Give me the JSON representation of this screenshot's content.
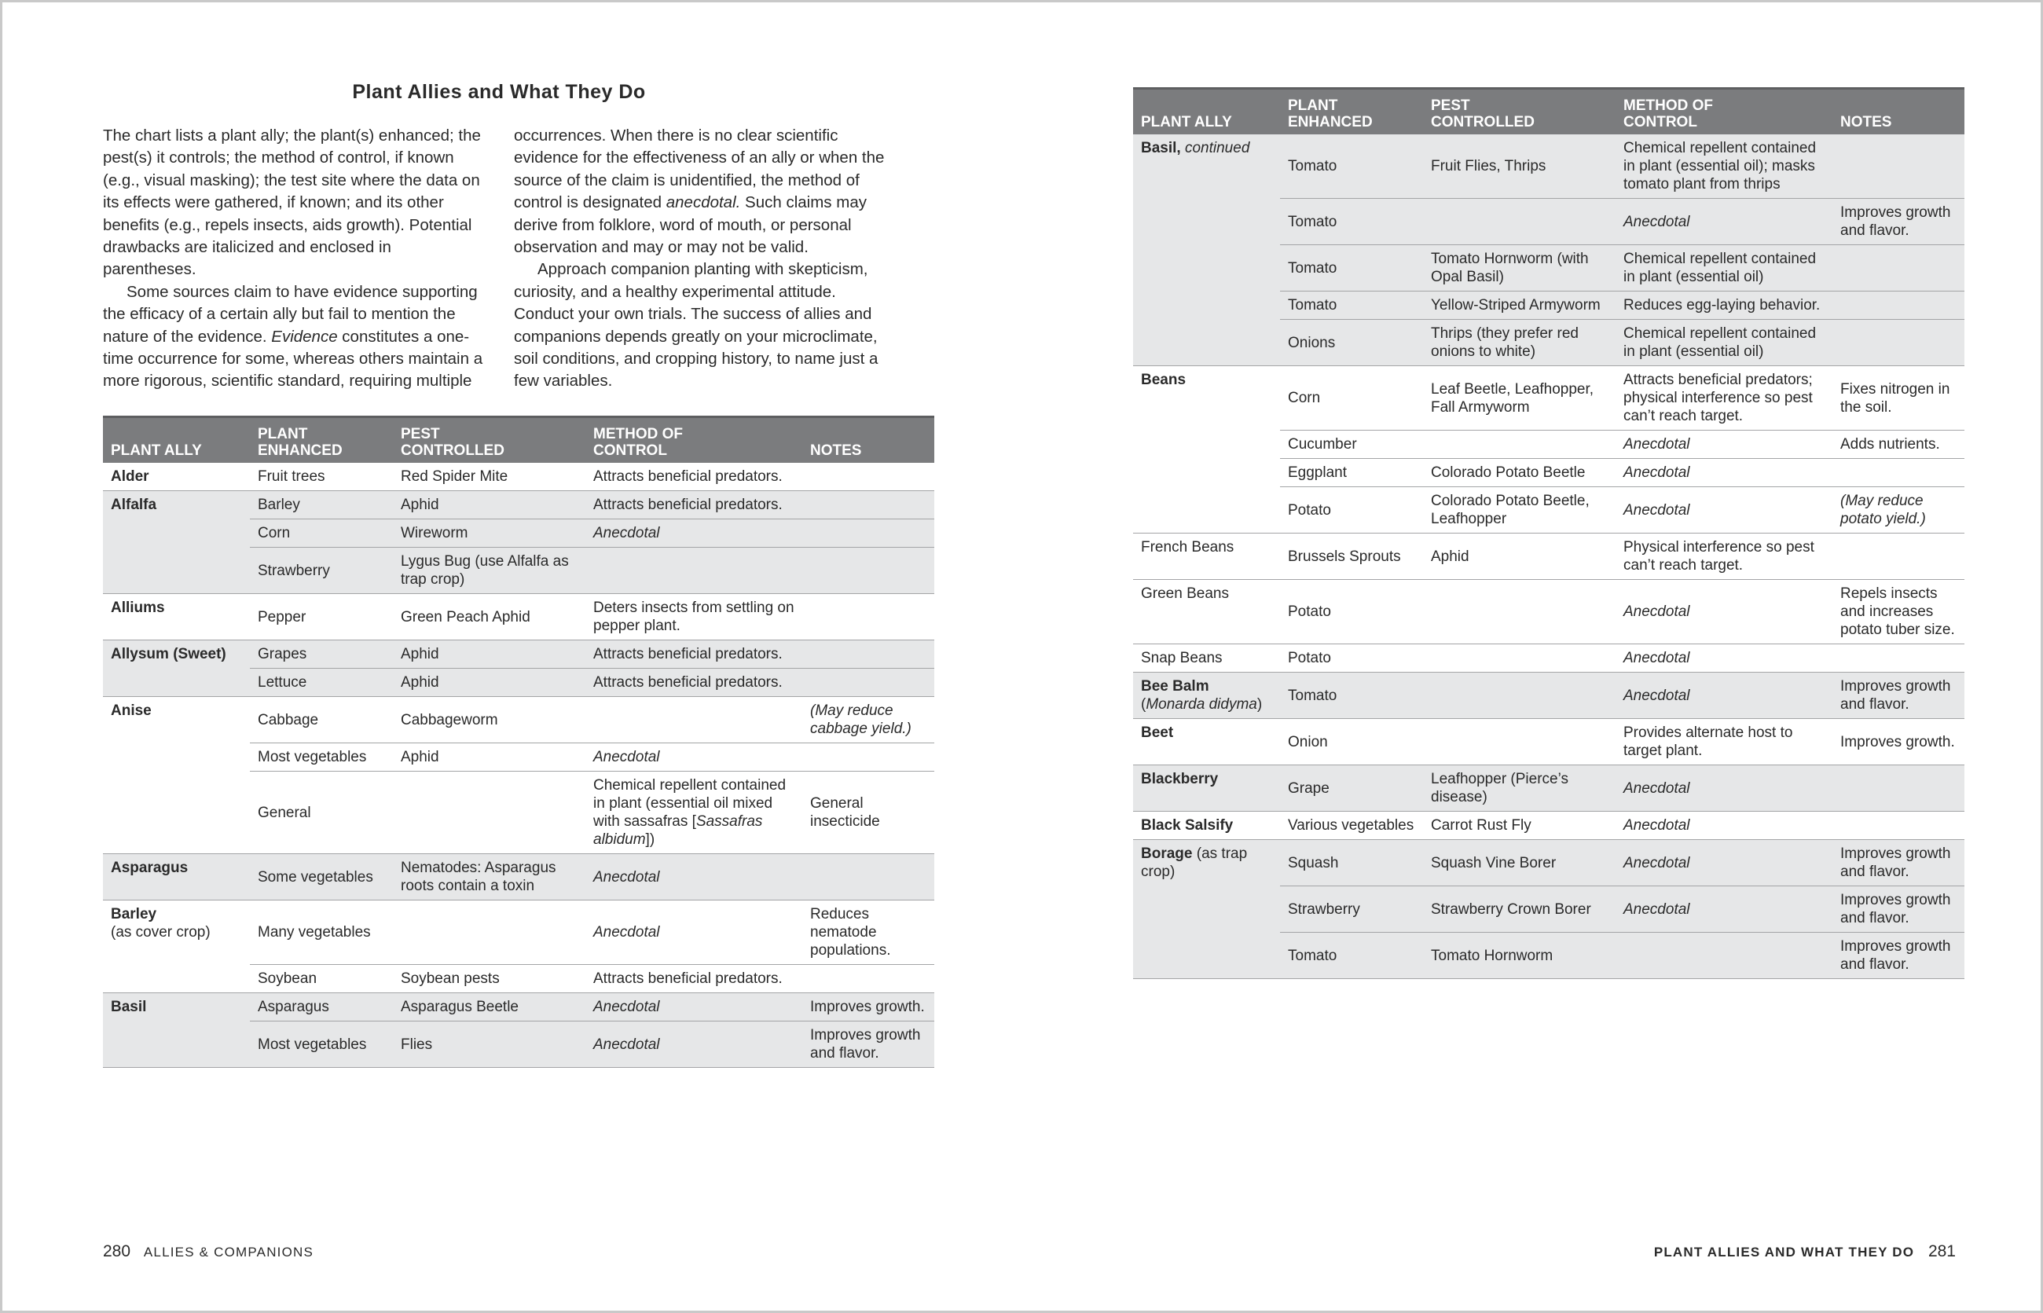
{
  "left_page": {
    "title": "Plant Allies and What They Do",
    "intro": [
      [
        "The chart lists a plant ally; the plant(s) enhanced; the pest(s) it controls; the method of control, if known (e.g., visual masking); the test site where the data on its effects were gathered, if known; and its other benefits (e.g., repels insects, aids growth). Potential drawbacks are italicized and enclosed in parentheses."
      ],
      [
        "Some sources claim to have evidence supporting the efficacy of a certain ally but fail to mention the nature of the evidence. ",
        {
          "i": "Evidence"
        },
        " constitutes a one-time occurrence for some, whereas others maintain a more rigorous, scientific standard, requiring multiple occurrences. When there is no clear scientific evidence for the effectiveness of an ally or when the source of the claim is unidentified, the method of control is designated ",
        {
          "i": "anecdotal."
        },
        " Such claims may derive from folklore, word of mouth, or personal observation and may or may not be valid."
      ],
      [
        "Approach companion planting with skepticism, curiosity, and a healthy experimental attitude. Conduct your own trials. The success of allies and companions depends greatly on your microclimate, soil conditions, and cropping history, to name just a few variables."
      ]
    ],
    "table": {
      "header": [
        "PLANT ALLY",
        "PLANT\nENHANCED",
        "PEST\nCONTROLLED",
        "METHOD OF\nCONTROL",
        "NOTES"
      ],
      "groups": [
        [
          [
            [
              {
                "b": "Alder"
              }
            ],
            "Fruit trees",
            "Red Spider Mite",
            "Attracts beneficial predators.",
            null
          ]
        ],
        [
          [
            [
              {
                "b": "Alfalfa"
              }
            ],
            "Barley",
            "Aphid",
            "Attracts beneficial predators.",
            null
          ],
          [
            null,
            "Corn",
            "Wireworm",
            [
              {
                "i": "Anecdotal"
              }
            ],
            null
          ],
          [
            null,
            "Strawberry",
            "Lygus Bug (use Alfalfa as trap crop)",
            null,
            null
          ]
        ],
        [
          [
            [
              {
                "b": "Alliums"
              }
            ],
            "Pepper",
            "Green Peach Aphid",
            "Deters insects from settling on pepper plant.",
            null
          ]
        ],
        [
          [
            [
              {
                "b": "Allysum (Sweet)"
              }
            ],
            "Grapes",
            "Aphid",
            "Attracts beneficial predators.",
            null
          ],
          [
            null,
            "Lettuce",
            "Aphid",
            "Attracts beneficial predators.",
            null
          ]
        ],
        [
          [
            [
              {
                "b": "Anise"
              }
            ],
            "Cabbage",
            "Cabbageworm",
            null,
            [
              {
                "i": "(May reduce cabbage yield.)"
              }
            ]
          ],
          [
            null,
            "Most vegetables",
            "Aphid",
            [
              {
                "i": "Anecdotal"
              }
            ],
            null
          ],
          [
            null,
            "General",
            null,
            [
              "Chemical repellent contained in plant (essential oil mixed with sassafras [",
              {
                "i": "Sassafras albidum"
              },
              "])"
            ],
            "General insecticide"
          ]
        ],
        [
          [
            [
              {
                "b": "Asparagus"
              }
            ],
            "Some vegetables",
            "Nematodes: Asparagus roots contain a toxin",
            [
              {
                "i": "Anecdotal"
              }
            ],
            null
          ]
        ],
        [
          [
            [
              {
                "b": "Barley"
              },
              "\n(as cover crop)"
            ],
            "Many vegetables",
            null,
            [
              {
                "i": "Anecdotal"
              }
            ],
            "Reduces nematode populations."
          ],
          [
            null,
            "Soybean",
            "Soybean pests",
            "Attracts beneficial predators.",
            null
          ]
        ],
        [
          [
            [
              {
                "b": "Basil"
              }
            ],
            "Asparagus",
            "Asparagus Beetle",
            [
              {
                "i": "Anecdotal"
              }
            ],
            "Improves growth."
          ],
          [
            null,
            "Most vegetables",
            "Flies",
            [
              {
                "i": "Anecdotal"
              }
            ],
            "Improves growth and flavor."
          ]
        ]
      ]
    },
    "footer": {
      "page": "280",
      "section": "ALLIES & COMPANIONS"
    }
  },
  "right_page": {
    "table": {
      "header": [
        "PLANT ALLY",
        "PLANT\nENHANCED",
        "PEST\nCONTROLLED",
        "METHOD OF\nCONTROL",
        "NOTES"
      ],
      "groups": [
        [
          [
            [
              {
                "b": "Basil, "
              },
              {
                "i": "continued"
              }
            ],
            "Tomato",
            "Fruit Flies, Thrips",
            "Chemical repellent contained in plant (essential oil); masks tomato plant from thrips",
            null
          ],
          [
            null,
            "Tomato",
            null,
            [
              {
                "i": "Anecdotal"
              }
            ],
            "Improves growth and flavor."
          ],
          [
            null,
            "Tomato",
            "Tomato Hornworm (with Opal Basil)",
            "Chemical repellent contained in plant (essential oil)",
            null
          ],
          [
            null,
            "Tomato",
            "Yellow-Striped Armyworm",
            "Reduces egg-laying behavior.",
            null
          ],
          [
            null,
            "Onions",
            "Thrips (they prefer red onions to white)",
            "Chemical repellent contained in plant (essential oil)",
            null
          ]
        ],
        [
          [
            [
              {
                "b": "Beans"
              }
            ],
            "Corn",
            "Leaf Beetle, Leafhopper, Fall Armyworm",
            "Attracts beneficial predators; physical interference so pest can’t reach target.",
            "Fixes nitrogen in the soil."
          ],
          [
            null,
            "Cucumber",
            null,
            [
              {
                "i": "Anecdotal"
              }
            ],
            "Adds nutrients."
          ],
          [
            null,
            "Eggplant",
            "Colorado Potato Beetle",
            [
              {
                "i": "Anecdotal"
              }
            ],
            null
          ],
          [
            null,
            "Potato",
            "Colorado Potato Beetle, Leafhopper",
            [
              {
                "i": "Anecdotal"
              }
            ],
            [
              {
                "i": "(May reduce potato yield.)"
              }
            ]
          ],
          [
            "French Beans",
            "Brussels Sprouts",
            "Aphid",
            "Physical interference so pest can’t reach target.",
            null
          ],
          [
            "Green Beans",
            "Potato",
            null,
            [
              {
                "i": "Anecdotal"
              }
            ],
            "Repels insects and increases potato tuber size."
          ],
          [
            "Snap Beans",
            "Potato",
            null,
            [
              {
                "i": "Anecdotal"
              }
            ],
            null
          ]
        ],
        [
          [
            [
              {
                "b": "Bee Balm"
              },
              "\n(",
              {
                "i": "Monarda didyma"
              },
              ")"
            ],
            "Tomato",
            null,
            [
              {
                "i": "Anecdotal"
              }
            ],
            "Improves growth and flavor."
          ]
        ],
        [
          [
            [
              {
                "b": "Beet"
              }
            ],
            "Onion",
            null,
            "Provides alternate host to target plant.",
            "Improves growth."
          ]
        ],
        [
          [
            [
              {
                "b": "Blackberry"
              }
            ],
            "Grape",
            "Leafhopper (Pierce’s disease)",
            [
              {
                "i": "Anecdotal"
              }
            ],
            null
          ]
        ],
        [
          [
            [
              {
                "b": "Black Salsify"
              }
            ],
            "Various vegetables",
            "Carrot Rust Fly",
            [
              {
                "i": "Anecdotal"
              }
            ],
            null
          ]
        ],
        [
          [
            [
              {
                "b": "Borage"
              },
              " (as trap crop)"
            ],
            "Squash",
            "Squash Vine Borer",
            [
              {
                "i": "Anecdotal"
              }
            ],
            "Improves growth and flavor."
          ],
          [
            null,
            "Strawberry",
            "Strawberry Crown Borer",
            [
              {
                "i": "Anecdotal"
              }
            ],
            "Improves growth and flavor."
          ],
          [
            null,
            "Tomato",
            "Tomato Hornworm",
            null,
            "Improves growth and flavor."
          ]
        ]
      ]
    },
    "footer": {
      "section": "PLANT ALLIES AND WHAT THEY DO",
      "page": "281"
    }
  }
}
